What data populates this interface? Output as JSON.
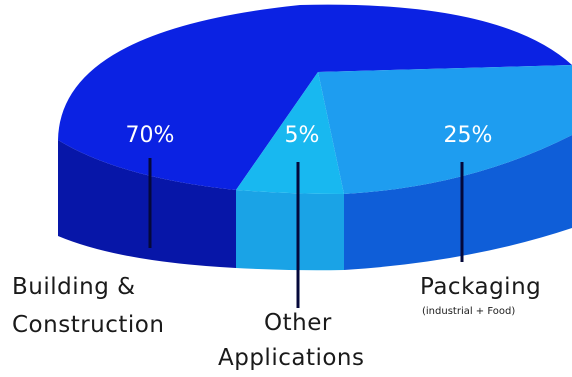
{
  "chart_data": {
    "type": "pie",
    "title": "",
    "slices": [
      {
        "label_line1": "Building &",
        "label_line2": "Construction",
        "sublabel": "",
        "value": 70,
        "value_label": "70%",
        "top_color": "#0b22e3",
        "side_color": "#0716a8"
      },
      {
        "label_line1": "Other",
        "label_line2": "Applications",
        "sublabel": "",
        "value": 5,
        "value_label": "5%",
        "top_color": "#18b8f0",
        "side_color": "#1aa3e6"
      },
      {
        "label_line1": "Packaging",
        "label_line2": "",
        "sublabel": "(industrial + Food)",
        "value": 25,
        "value_label": "25%",
        "top_color": "#1e9df0",
        "side_color": "#0f5ed8"
      }
    ]
  }
}
